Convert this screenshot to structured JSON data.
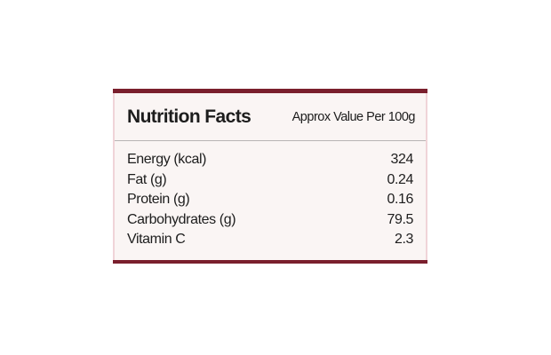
{
  "label": {
    "title": "Nutrition Facts",
    "subtitle": "Approx Value Per 100g",
    "rows": [
      {
        "name": "Energy (kcal)",
        "value": "324"
      },
      {
        "name": "Fat (g)",
        "value": "0.24"
      },
      {
        "name": "Protein (g)",
        "value": "0.16"
      },
      {
        "name": "Carbohydrates (g)",
        "value": "79.5"
      },
      {
        "name": "Vitamin C",
        "value": "2.3"
      }
    ],
    "colors": {
      "accent_maroon": "#7a1f2d",
      "card_background": "#faf5f4",
      "card_edge": "#f0d4d8",
      "divider": "#b8b4b4",
      "text": "#1d1d1d",
      "page_background": "#ffffff"
    }
  }
}
